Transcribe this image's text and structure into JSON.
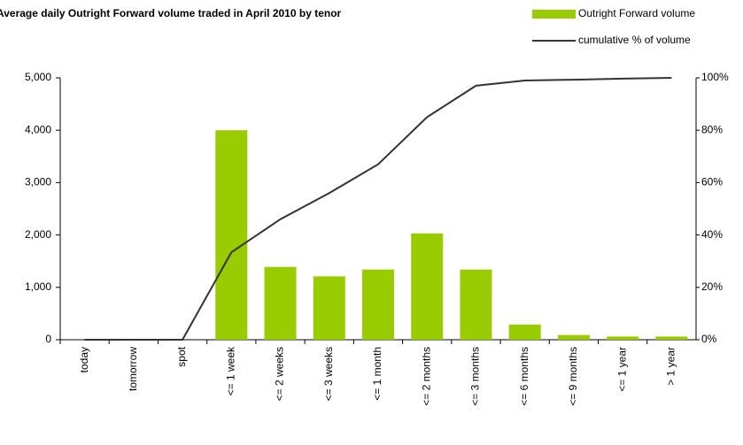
{
  "chart_data": {
    "type": "bar",
    "title": "Average daily Outright Forward volume traded in April 2010 by tenor",
    "categories": [
      "today",
      "tomorrow",
      "spot",
      "<= 1 week",
      "<= 2 weeks",
      "<= 3 weeks",
      "<= 1 month",
      "<= 2 months",
      "<= 3 months",
      "<= 6 months",
      "<= 9 months",
      "<= 1 year",
      "> 1 year"
    ],
    "series": [
      {
        "name": "Outright Forward volume",
        "type": "bar",
        "color": "#99cc00",
        "values": [
          0,
          0,
          0,
          4000,
          1390,
          1210,
          1340,
          2030,
          1340,
          290,
          90,
          60,
          60
        ]
      },
      {
        "name": "cumulative % of volume",
        "type": "line",
        "color": "#333333",
        "axis": "y2",
        "values": [
          0,
          0,
          0,
          33.4,
          46,
          56,
          67,
          85,
          97,
          99,
          99.3,
          99.7,
          100
        ]
      }
    ],
    "ylim": [
      0,
      5000
    ],
    "yticks": [
      0,
      {
        "value": 1000,
        "label": "1,000"
      },
      {
        "value": 2000,
        "label": "2,000"
      },
      {
        "value": 3000,
        "label": "3,000"
      },
      {
        "value": 4000,
        "label": "4,000"
      },
      {
        "value": 5000,
        "label": "5,000"
      }
    ],
    "y2lim": [
      0,
      100
    ],
    "y2ticks": [
      {
        "value": 0,
        "label": "0%"
      },
      {
        "value": 20,
        "label": "20%"
      },
      {
        "value": 40,
        "label": "40%"
      },
      {
        "value": 60,
        "label": "60%"
      },
      {
        "value": 80,
        "label": "80%"
      },
      {
        "value": 100,
        "label": "100%"
      }
    ],
    "grid": false
  }
}
